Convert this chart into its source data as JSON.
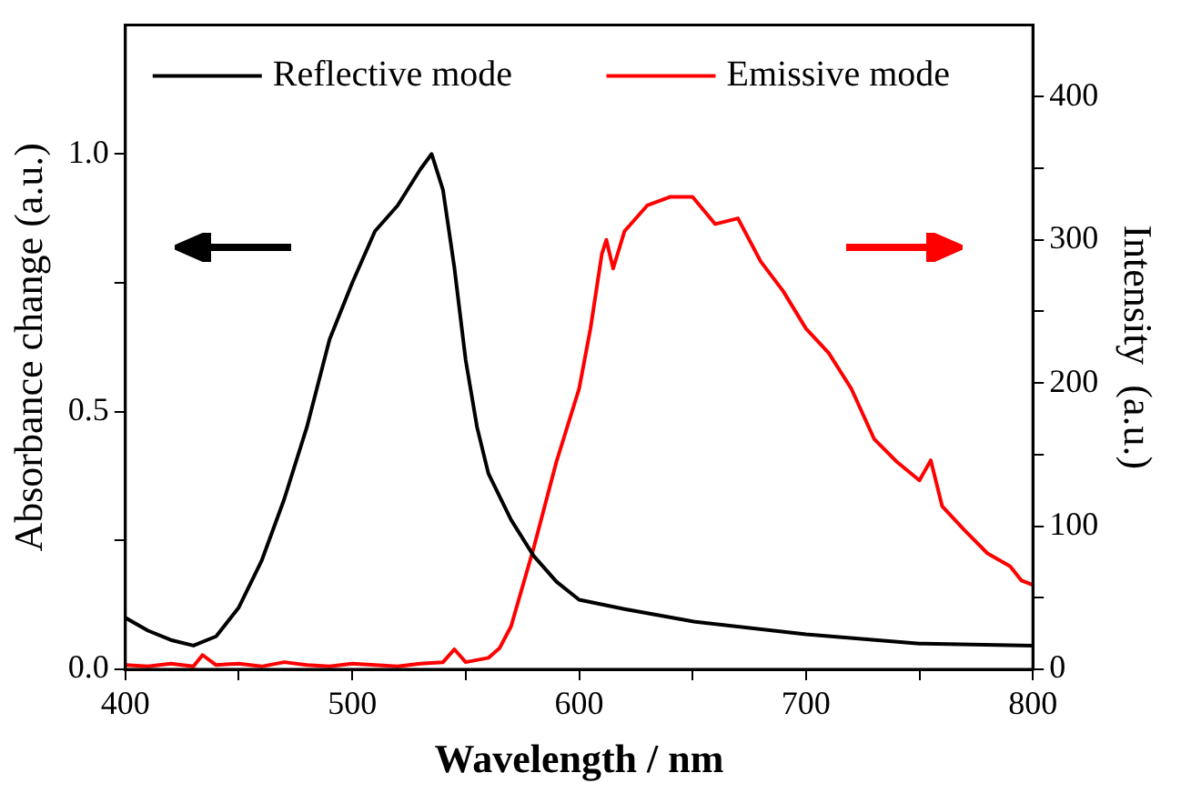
{
  "chart_data": {
    "type": "line",
    "xlabel": "Wavelength / nm",
    "ylabel": "Absorbance change (a.u.)",
    "y2label": "Intensity  (a.u.)",
    "xlim": [
      400,
      800
    ],
    "xticks": [
      400,
      {
        "value": 450,
        "label": null
      },
      500,
      {
        "value": 550,
        "label": null
      },
      600,
      {
        "value": 650,
        "label": null
      },
      700,
      {
        "value": 750,
        "label": null
      },
      800
    ],
    "ylim": [
      0,
      1.25
    ],
    "yticks": [
      {
        "value": 0,
        "label": "0.0"
      },
      {
        "value": 0.25,
        "label": null
      },
      0.5,
      {
        "value": 0.75,
        "label": null
      },
      {
        "value": 1,
        "label": "1.0"
      }
    ],
    "y2lim": [
      0,
      450
    ],
    "y2ticks": [
      0,
      {
        "value": 50,
        "label": null
      },
      100,
      {
        "value": 150,
        "label": null
      },
      200,
      {
        "value": 250,
        "label": null
      },
      300,
      {
        "value": 350,
        "label": null
      },
      400
    ],
    "legend": "top",
    "grid": false,
    "marker": "none",
    "line_style": "solid",
    "series": [
      {
        "name": "Reflective mode",
        "color": "#000000",
        "x": [
          400,
          410,
          420,
          430,
          440,
          450,
          460,
          470,
          480,
          490,
          500,
          510,
          520,
          530,
          535,
          540,
          545,
          550,
          555,
          560,
          570,
          580,
          590,
          600,
          620,
          650,
          700,
          750,
          800
        ],
        "values": [
          0.1,
          0.075,
          0.057,
          0.046,
          0.064,
          0.12,
          0.21,
          0.33,
          0.47,
          0.64,
          0.75,
          0.85,
          0.9,
          0.97,
          1.0,
          0.93,
          0.78,
          0.6,
          0.47,
          0.38,
          0.29,
          0.22,
          0.17,
          0.135,
          0.117,
          0.093,
          0.068,
          0.05,
          0.046
        ]
      },
      {
        "name": "Emissive mode",
        "color": "#ff0000",
        "axis": "y2",
        "x": [
          400,
          410,
          420,
          430,
          434,
          440,
          450,
          460,
          470,
          480,
          490,
          500,
          510,
          520,
          530,
          540,
          545,
          550,
          560,
          565,
          570,
          580,
          590,
          600,
          605,
          610,
          612,
          615,
          620,
          630,
          640,
          650,
          660,
          670,
          680,
          690,
          700,
          710,
          720,
          730,
          740,
          750,
          755,
          760,
          770,
          780,
          790,
          795,
          800
        ],
        "values": [
          3,
          2,
          4,
          2,
          10,
          3,
          4,
          2,
          5,
          3,
          2,
          4,
          3,
          2,
          4,
          5,
          14,
          5,
          8,
          15,
          30,
          85,
          145,
          196,
          238,
          290,
          300,
          280,
          306,
          324,
          330,
          330,
          311,
          315,
          285,
          264,
          238,
          221,
          196,
          161,
          145,
          132,
          146,
          114,
          97,
          81,
          72,
          62,
          59
        ]
      }
    ]
  }
}
